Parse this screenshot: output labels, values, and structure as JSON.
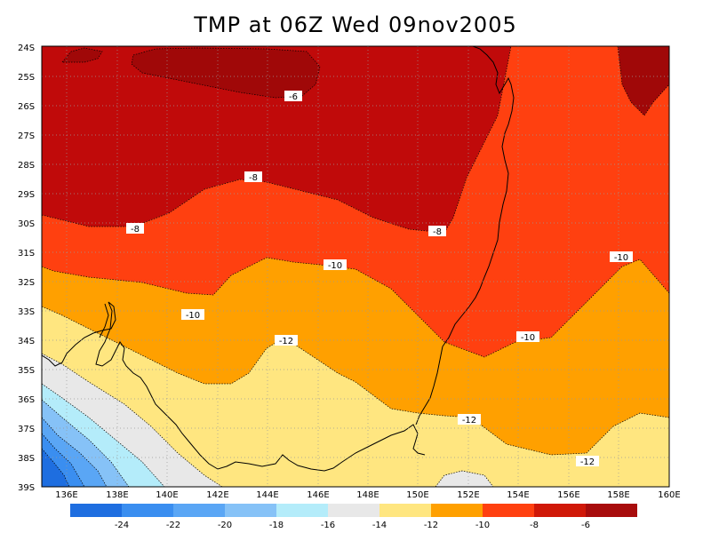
{
  "title": "TMP at 06Z Wed 09nov2005",
  "lat_labels": [
    "24S",
    "25S",
    "26S",
    "27S",
    "28S",
    "29S",
    "30S",
    "31S",
    "32S",
    "33S",
    "34S",
    "35S",
    "36S",
    "37S",
    "38S",
    "39S"
  ],
  "lon_labels": [
    "136E",
    "138E",
    "140E",
    "142E",
    "144E",
    "146E",
    "148E",
    "150E",
    "152E",
    "154E",
    "156E",
    "158E",
    "160E"
  ],
  "contour_labels": [
    "-6",
    "-8",
    "-8",
    "-8",
    "-10",
    "-10",
    "-10",
    "-10",
    "-12",
    "-12",
    "-12"
  ],
  "colorbar": {
    "labels": [
      "-24",
      "-22",
      "-20",
      "-18",
      "-16",
      "-14",
      "-12",
      "-10",
      "-8",
      "-6"
    ],
    "colors": [
      "#1e6ee0",
      "#3a8ef0",
      "#5aa6f5",
      "#86c2f7",
      "#b4ecfa",
      "#e8e8e8",
      "#ffe680",
      "#ffa000",
      "#ff4010",
      "#d01808",
      "#a80c0c"
    ]
  }
}
